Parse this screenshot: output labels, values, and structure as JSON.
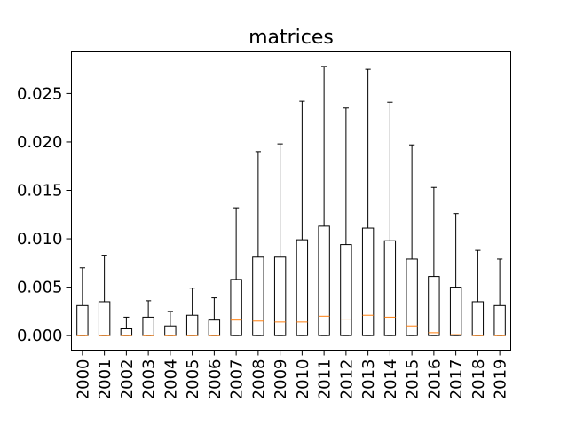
{
  "chart_data": {
    "type": "box",
    "title": "matrices",
    "xlabel": "",
    "ylabel": "",
    "ylim": [
      -0.0015,
      0.0293
    ],
    "yticks": [
      0.0,
      0.005,
      0.01,
      0.015,
      0.02,
      0.025
    ],
    "ytick_labels": [
      "0.000",
      "0.005",
      "0.010",
      "0.015",
      "0.020",
      "0.025"
    ],
    "categories": [
      "2000",
      "2001",
      "2002",
      "2003",
      "2004",
      "2005",
      "2006",
      "2007",
      "2008",
      "2009",
      "2010",
      "2011",
      "2012",
      "2013",
      "2014",
      "2015",
      "2016",
      "2017",
      "2018",
      "2019"
    ],
    "boxes": [
      {
        "min": 0,
        "q1": 0,
        "median": 0.0,
        "q3": 0.0031,
        "max": 0.007
      },
      {
        "min": 0,
        "q1": 0,
        "median": 0.0,
        "q3": 0.0035,
        "max": 0.0083
      },
      {
        "min": 0,
        "q1": 0,
        "median": 0.0,
        "q3": 0.0007,
        "max": 0.0019
      },
      {
        "min": 0,
        "q1": 0,
        "median": 0.0,
        "q3": 0.0019,
        "max": 0.0036
      },
      {
        "min": 0,
        "q1": 0,
        "median": 0.0,
        "q3": 0.001,
        "max": 0.0025
      },
      {
        "min": 0,
        "q1": 0,
        "median": 0.0,
        "q3": 0.0021,
        "max": 0.0049
      },
      {
        "min": 0,
        "q1": 0,
        "median": 0.0,
        "q3": 0.0016,
        "max": 0.0039
      },
      {
        "min": 0,
        "q1": 0,
        "median": 0.0016,
        "q3": 0.0058,
        "max": 0.0132
      },
      {
        "min": 0,
        "q1": 0,
        "median": 0.0015,
        "q3": 0.0081,
        "max": 0.019
      },
      {
        "min": 0,
        "q1": 0,
        "median": 0.0014,
        "q3": 0.0081,
        "max": 0.0198
      },
      {
        "min": 0,
        "q1": 0,
        "median": 0.0014,
        "q3": 0.0099,
        "max": 0.0242
      },
      {
        "min": 0,
        "q1": 0,
        "median": 0.002,
        "q3": 0.0113,
        "max": 0.0278
      },
      {
        "min": 0,
        "q1": 0,
        "median": 0.0017,
        "q3": 0.0094,
        "max": 0.0235
      },
      {
        "min": 0,
        "q1": 0,
        "median": 0.0021,
        "q3": 0.0111,
        "max": 0.0275
      },
      {
        "min": 0,
        "q1": 0,
        "median": 0.0019,
        "q3": 0.0098,
        "max": 0.0241
      },
      {
        "min": 0,
        "q1": 0,
        "median": 0.001,
        "q3": 0.0079,
        "max": 0.0197
      },
      {
        "min": 0,
        "q1": 0,
        "median": 0.0003,
        "q3": 0.0061,
        "max": 0.0153
      },
      {
        "min": 0,
        "q1": 0,
        "median": 0.0001,
        "q3": 0.005,
        "max": 0.0126
      },
      {
        "min": 0,
        "q1": 0,
        "median": 0.0,
        "q3": 0.0035,
        "max": 0.0088
      },
      {
        "min": 0,
        "q1": 0,
        "median": 0.0,
        "q3": 0.0031,
        "max": 0.0079
      }
    ],
    "grid": false,
    "colors": {
      "box": "#000000",
      "median": "#ff7f0e",
      "background": "#ffffff"
    }
  }
}
